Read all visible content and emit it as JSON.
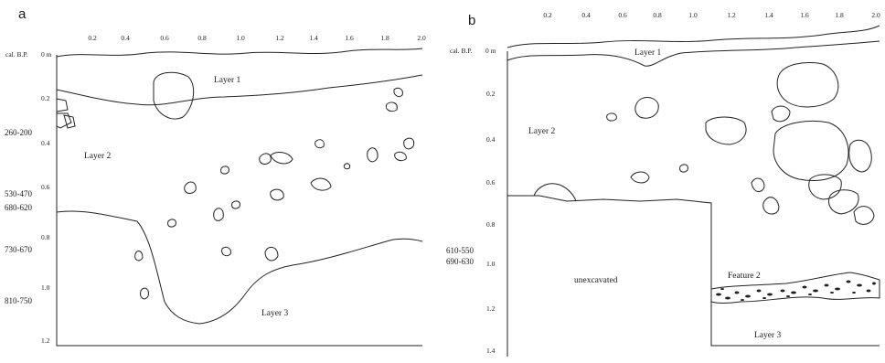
{
  "panels": {
    "a": {
      "letter": "a",
      "depth_unit_label": "cal. B.P.",
      "depth_zero_label": "0 m",
      "x_ticks": [
        "0.2",
        "0.4",
        "0.6",
        "0.8",
        "1.0",
        "1.2",
        "1.4",
        "1.6",
        "1.8",
        "2.0"
      ],
      "depth_ticks": [
        "0.2",
        "0.4",
        "0.6",
        "0.8",
        "1.0",
        "1.2"
      ],
      "dates": [
        "260-200",
        "530-470",
        "680-620",
        "730-670",
        "810-750"
      ],
      "layers": {
        "layer1": "Layer 1",
        "layer2": "Layer 2",
        "layer3": "Layer 3"
      }
    },
    "b": {
      "letter": "b",
      "depth_unit_label": "cal. B.P.",
      "depth_zero_label": "0 m",
      "x_ticks": [
        "0.2",
        "0.4",
        "0.6",
        "0.8",
        "1.0",
        "1.2",
        "1.4",
        "1.6",
        "1.8",
        "2.0"
      ],
      "depth_ticks": [
        "0.2",
        "0.4",
        "0.6",
        "0.8",
        "1.0",
        "1.2",
        "1.4"
      ],
      "dates": [
        "610-550",
        "690-630"
      ],
      "layers": {
        "layer1": "Layer 1",
        "layer2": "Layer 2",
        "layer3": "Layer 3",
        "feature2": "Feature 2",
        "unexcavated": "unexcavated"
      }
    }
  }
}
